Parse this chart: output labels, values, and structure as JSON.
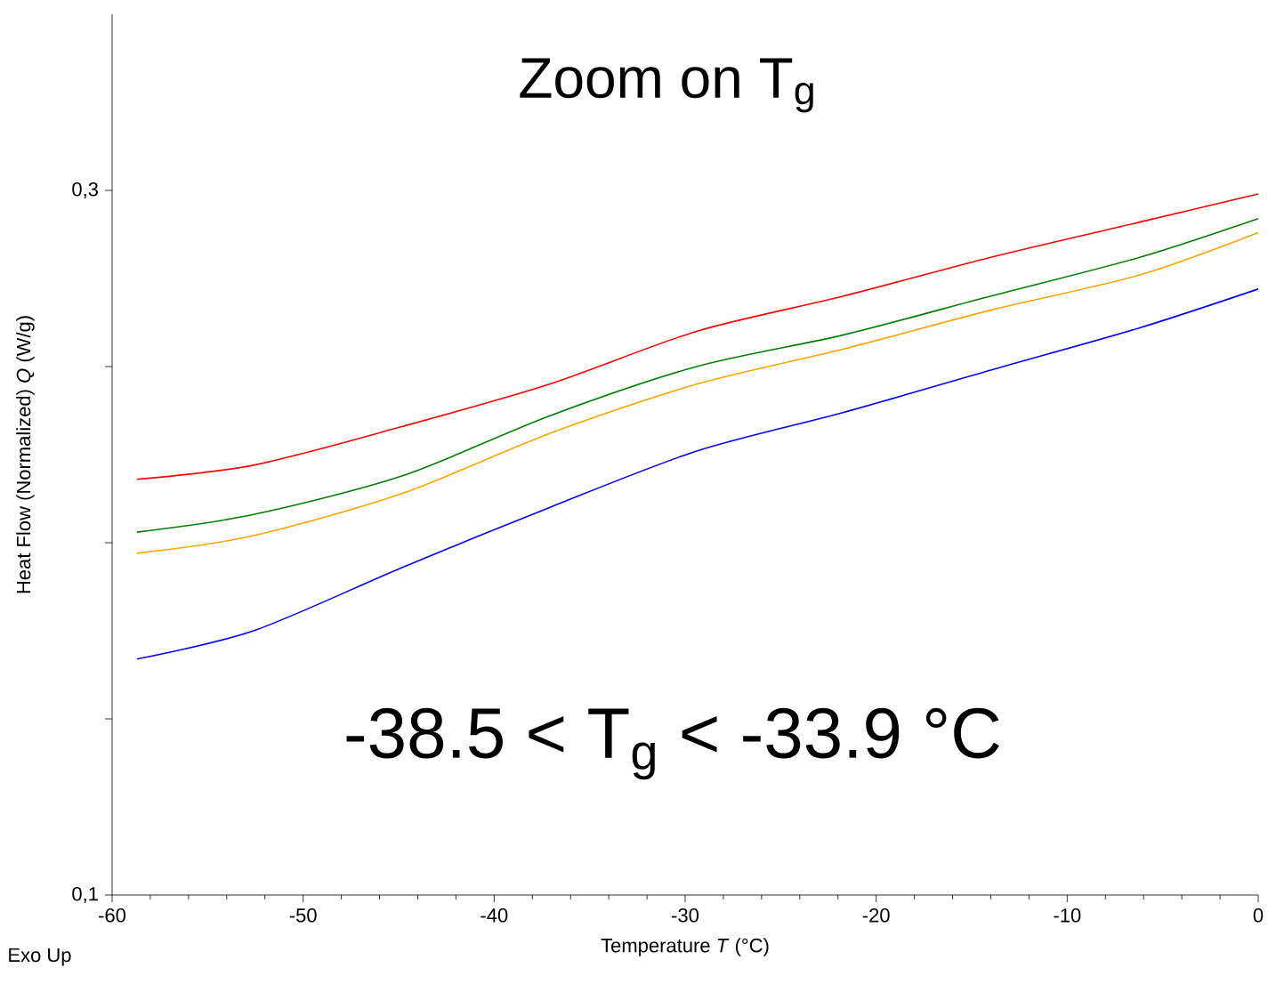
{
  "chart_data": {
    "type": "line",
    "xlabel": "Temperature *T* (°C)",
    "ylabel": "Heat Flow (Normalized) *Q* (W/g)",
    "annotations": [
      "Zoom on T$_{g}$",
      "-38.5 < T$_{g}$ < -33.9 °C",
      "Exo Up"
    ],
    "x": [
      -58.7,
      -52.6,
      -44.8,
      -37.1,
      -29.4,
      -21.7,
      -14.0,
      -6.2,
      0
    ],
    "series": [
      {
        "color": "#ff0000",
        "values": [
          0.218,
          0.222,
          0.233,
          0.245,
          0.26,
          0.27,
          0.281,
          0.291,
          0.299
        ]
      },
      {
        "color": "#008000",
        "values": [
          0.203,
          0.208,
          0.219,
          0.236,
          0.25,
          0.259,
          0.27,
          0.281,
          0.292
        ]
      },
      {
        "color": "#ffa500",
        "values": [
          0.197,
          0.202,
          0.214,
          0.231,
          0.245,
          0.255,
          0.266,
          0.276,
          0.288
        ]
      },
      {
        "color": "#0000ff",
        "values": [
          0.167,
          0.175,
          0.193,
          0.21,
          0.226,
          0.237,
          0.249,
          0.261,
          0.272
        ]
      }
    ],
    "xlim": [
      -60,
      0
    ],
    "xticks": [
      -60,
      -50,
      -40,
      -30,
      -20,
      -10,
      0
    ],
    "ylim": [
      0.1,
      0.35
    ],
    "yticks": [
      {
        "value": 0.1,
        "label": "0,1"
      },
      {
        "value": 0.15,
        "label": null
      },
      {
        "value": 0.2,
        "label": null
      },
      {
        "value": 0.25,
        "label": null
      },
      {
        "value": 0.3,
        "label": "0,3"
      }
    ],
    "grid": false,
    "line_style": "solid",
    "marker": "none"
  }
}
